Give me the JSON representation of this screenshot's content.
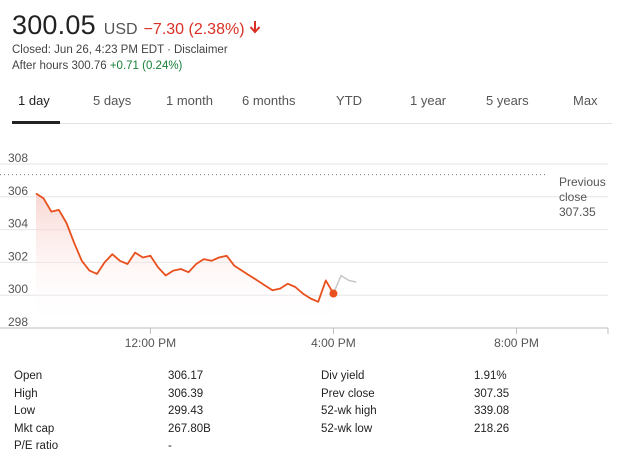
{
  "quote": {
    "price": "300.05",
    "currency": "USD",
    "change": "−7.30 (2.38%)",
    "closed_text": "Closed: Jun 26, 4:23 PM EDT",
    "separator": "·",
    "disclaimer": "Disclaimer",
    "after_hours_label": "After hours 300.76",
    "after_hours_change": "+0.71 (0.24%)",
    "colors": {
      "down": "#d93025",
      "up": "#188038",
      "line": "#e8501d"
    }
  },
  "tabs": [
    {
      "label": "1 day",
      "active": true
    },
    {
      "label": "5 days"
    },
    {
      "label": "1 month"
    },
    {
      "label": "6 months"
    },
    {
      "label": "YTD"
    },
    {
      "label": "1 year"
    },
    {
      "label": "5 years"
    },
    {
      "label": "Max"
    }
  ],
  "prev_close": {
    "label_1": "Previous",
    "label_2": "close",
    "value": "307.35"
  },
  "chart_data": {
    "type": "line",
    "title": "",
    "xlabel": "",
    "ylabel": "",
    "y_ticks": [
      "308",
      "306",
      "304",
      "302",
      "300",
      "298"
    ],
    "x_ticks": [
      "12:00 PM",
      "4:00 PM",
      "8:00 PM"
    ],
    "ylim": [
      298,
      308
    ],
    "xlim": [
      "9:30 AM",
      "10:00 PM"
    ],
    "previous_close": 307.35,
    "grid": "horizontal",
    "series": [
      {
        "x": [
          "9:30",
          "9:40",
          "9:50",
          "10:00",
          "10:10",
          "10:20",
          "10:30",
          "10:40",
          "10:50",
          "11:00",
          "11:10",
          "11:20",
          "11:30",
          "11:40",
          "11:50",
          "12:00",
          "12:10",
          "12:20",
          "12:30",
          "12:40",
          "12:50",
          "13:00",
          "13:10",
          "13:20",
          "13:30",
          "13:40",
          "13:50",
          "14:00",
          "14:10",
          "14:20",
          "14:30",
          "14:40",
          "14:50",
          "15:00",
          "15:10",
          "15:20",
          "15:30",
          "15:40",
          "15:50",
          "16:00"
        ],
        "y": [
          306.2,
          305.9,
          305.1,
          305.2,
          304.4,
          303.2,
          302.1,
          301.5,
          301.3,
          302.0,
          302.5,
          302.1,
          301.9,
          302.6,
          302.3,
          302.4,
          301.7,
          301.2,
          301.5,
          301.6,
          301.4,
          301.9,
          302.2,
          302.1,
          302.3,
          302.4,
          301.8,
          301.5,
          301.2,
          300.9,
          300.6,
          300.3,
          300.4,
          300.7,
          300.5,
          300.1,
          299.8,
          299.6,
          300.9,
          300.1
        ]
      },
      {
        "x": [
          "16:00",
          "16:10",
          "16:20",
          "16:30"
        ],
        "y": [
          300.1,
          301.2,
          300.9,
          300.8
        ]
      }
    ]
  },
  "stats_left": [
    {
      "label": "Open",
      "value": "306.17"
    },
    {
      "label": "High",
      "value": "306.39"
    },
    {
      "label": "Low",
      "value": "299.43"
    },
    {
      "label": "Mkt cap",
      "value": "267.80B"
    },
    {
      "label": "P/E ratio",
      "value": "-"
    }
  ],
  "stats_right": [
    {
      "label": "Div yield",
      "value": "1.91%"
    },
    {
      "label": "Prev close",
      "value": "307.35"
    },
    {
      "label": "52-wk high",
      "value": "339.08"
    },
    {
      "label": "52-wk low",
      "value": "218.26"
    }
  ]
}
